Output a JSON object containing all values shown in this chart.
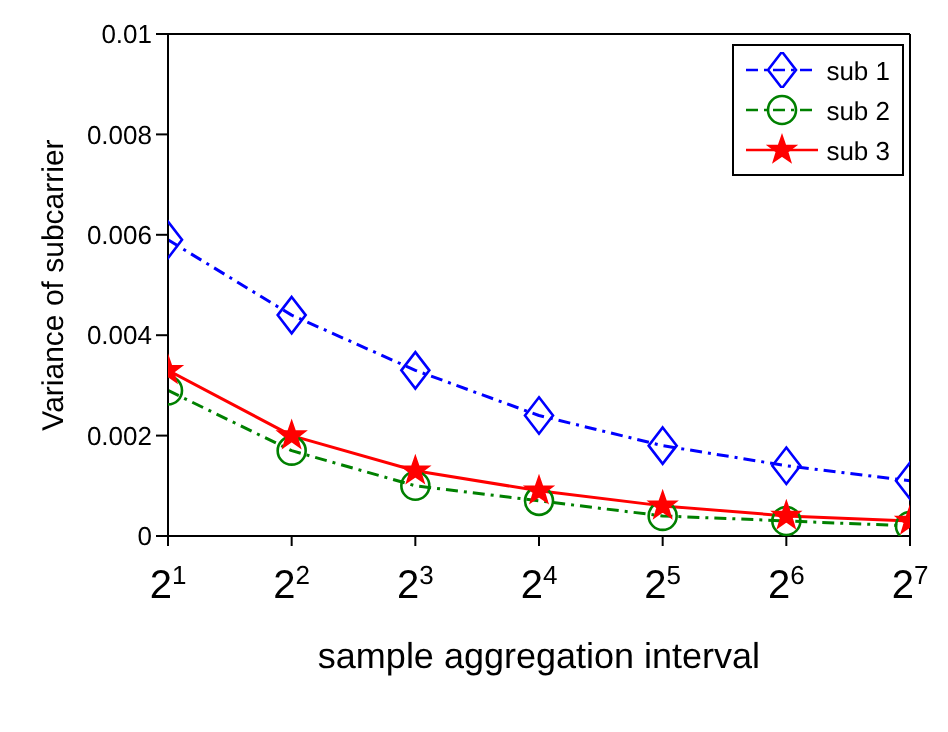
{
  "chart_data": {
    "type": "line",
    "xlabel": "sample aggregation interval",
    "ylabel": "Variance of subcarrier",
    "categories": [
      "2$^{1}$",
      "2$^{2}$",
      "2$^{3}$",
      "2$^{4}$",
      "2$^{5}$",
      "2$^{6}$",
      "2$^{7}$"
    ],
    "ylim": [
      0,
      0.01
    ],
    "yticks": [
      0,
      0.002,
      0.004,
      0.006,
      0.008,
      0.01
    ],
    "grid": false,
    "legend": "top right",
    "series": [
      {
        "name": "sub 1",
        "color": "#0000ff",
        "marker": "diamond",
        "line_style": "dashed",
        "values": [
          0.0059,
          0.0044,
          0.0033,
          0.0024,
          0.0018,
          0.0014,
          0.0011
        ]
      },
      {
        "name": "sub 2",
        "color": "#008000",
        "marker": "circle",
        "line_style": "dashed",
        "values": [
          0.0029,
          0.0017,
          0.001,
          0.0007,
          0.0004,
          0.0003,
          0.0002
        ]
      },
      {
        "name": "sub 3",
        "color": "#ff0000",
        "marker": "star",
        "line_style": "solid",
        "values": [
          0.0033,
          0.002,
          0.0013,
          0.0009,
          0.0006,
          0.0004,
          0.0003
        ]
      }
    ]
  }
}
